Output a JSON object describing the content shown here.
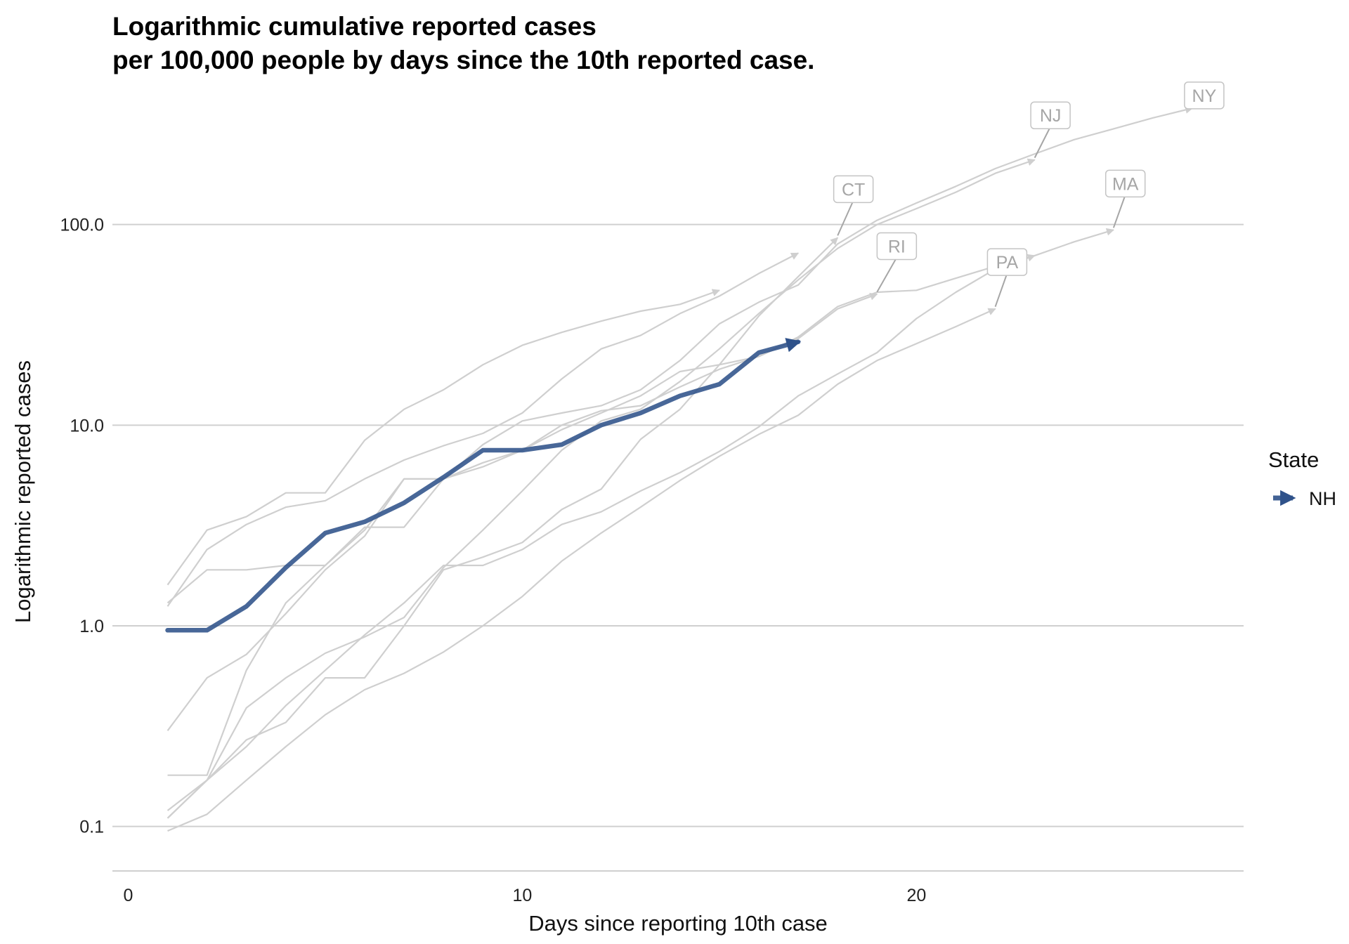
{
  "chart_data": {
    "type": "line",
    "title": "Logarithmic cumulative reported cases",
    "subtitle": "per 100,000 people by days since the 10th reported case.",
    "xlabel": "Days since reporting 10th case",
    "ylabel": "Logarithmic reported cases",
    "x_scale": "linear",
    "y_scale": "log10",
    "xlim": [
      -0.4,
      28.3
    ],
    "ylim": [
      0.06,
      500
    ],
    "x_ticks": [
      0,
      10,
      20
    ],
    "x_tick_labels": [
      "0",
      "10",
      "20"
    ],
    "y_ticks": [
      0.1,
      1,
      10,
      100
    ],
    "y_tick_labels": [
      "0.1",
      "1.0",
      "10.0",
      "100.0"
    ],
    "grid": "horizontal major",
    "legend": {
      "title": "State",
      "position": "right",
      "entries": [
        "NH"
      ]
    },
    "highlight_color": "#2f528a",
    "background_line_color": "#cfcfcf",
    "label_color": "#a6a6a6",
    "series": [
      {
        "name": "NH",
        "highlight": true,
        "x": [
          1,
          2,
          3,
          4,
          5,
          6,
          7,
          8,
          9,
          10,
          11,
          12,
          13,
          14,
          15,
          16,
          17
        ],
        "y": [
          0.95,
          0.95,
          1.25,
          1.95,
          2.9,
          3.3,
          4.1,
          5.5,
          7.5,
          7.5,
          8.0,
          10.0,
          11.5,
          14.0,
          16.0,
          23.0,
          26.0
        ]
      },
      {
        "name": "NY",
        "label_x": 27.3,
        "label_y": 440,
        "x": [
          1,
          2,
          3,
          4,
          5,
          6,
          7,
          8,
          9,
          10,
          11,
          12,
          13,
          14,
          15,
          16,
          17,
          18,
          19,
          20,
          21,
          22,
          23,
          24,
          25,
          26,
          27
        ],
        "y": [
          0.18,
          0.18,
          0.6,
          1.3,
          2.0,
          3.0,
          5.4,
          5.4,
          8.0,
          10.5,
          11.5,
          12.5,
          15.0,
          21.0,
          32.0,
          41.0,
          50.0,
          80.0,
          105.0,
          128.0,
          155.0,
          190.0,
          225.0,
          265.0,
          300.0,
          340.0,
          380.0
        ]
      },
      {
        "name": "NJ",
        "label_x": 23.4,
        "label_y": 350,
        "x": [
          1,
          2,
          3,
          4,
          5,
          6,
          7,
          8,
          9,
          10,
          11,
          12,
          13,
          14,
          15,
          16,
          17,
          18,
          19,
          20,
          21,
          22,
          23
        ],
        "y": [
          0.12,
          0.17,
          0.39,
          0.55,
          0.73,
          0.88,
          1.1,
          1.95,
          3.0,
          4.7,
          7.5,
          10.5,
          12.0,
          16.5,
          24.0,
          36.0,
          53.0,
          76.0,
          100.0,
          120.0,
          145.0,
          180.0,
          210.0
        ]
      },
      {
        "name": "MA",
        "label_x": 25.3,
        "label_y": 160,
        "x": [
          1,
          2,
          3,
          4,
          5,
          6,
          7,
          8,
          9,
          10,
          11,
          12,
          13,
          14,
          15,
          16,
          17,
          18,
          19,
          20,
          21,
          22,
          23,
          24,
          25
        ],
        "y": [
          0.3,
          0.55,
          0.72,
          1.15,
          1.9,
          2.8,
          5.4,
          5.4,
          6.2,
          7.5,
          10.0,
          11.8,
          12.5,
          15.5,
          19.0,
          22.0,
          27.5,
          39.0,
          46.0,
          47.0,
          54.0,
          62.0,
          70.0,
          82.0,
          94.0
        ]
      },
      {
        "name": "CT",
        "label_x": 18.4,
        "label_y": 150,
        "x": [
          1,
          2,
          3,
          4,
          5,
          6,
          7,
          8,
          9,
          10,
          11,
          12,
          13,
          14,
          15,
          16,
          17,
          18
        ],
        "y": [
          0.11,
          0.17,
          0.27,
          0.33,
          0.55,
          0.55,
          1.0,
          1.9,
          2.2,
          2.6,
          3.8,
          4.8,
          8.5,
          12.0,
          20.0,
          35.0,
          55.0,
          86.0
        ]
      },
      {
        "name": "RI",
        "label_x": 19.5,
        "label_y": 78,
        "x": [
          1,
          2,
          3,
          4,
          5,
          6,
          7,
          8,
          9,
          10,
          11,
          12,
          13,
          14,
          15,
          16,
          17,
          18,
          19
        ],
        "y": [
          1.3,
          1.9,
          1.9,
          2.0,
          2.0,
          3.1,
          3.1,
          5.4,
          6.5,
          7.5,
          9.5,
          11.5,
          14.0,
          18.5,
          20.0,
          22.0,
          27.0,
          38.0,
          45.0
        ]
      },
      {
        "name": "PA",
        "label_x": 22.3,
        "label_y": 65,
        "x": [
          1,
          2,
          3,
          4,
          5,
          6,
          7,
          8,
          9,
          10,
          11,
          12,
          13,
          14,
          15,
          16,
          17,
          18,
          19,
          20,
          21,
          22
        ],
        "y": [
          0.095,
          0.115,
          0.17,
          0.25,
          0.36,
          0.48,
          0.58,
          0.74,
          1.0,
          1.4,
          2.1,
          2.9,
          3.9,
          5.3,
          7.0,
          9.0,
          11.2,
          16.0,
          21.0,
          25.5,
          31.0,
          38.0
        ]
      },
      {
        "x": [
          1,
          2,
          3,
          4,
          5,
          6,
          7,
          8,
          9,
          10,
          11,
          12,
          13,
          14,
          15
        ],
        "y": [
          1.6,
          3.0,
          3.5,
          4.6,
          4.6,
          8.4,
          12.0,
          15.0,
          20.0,
          25.0,
          29.0,
          33.0,
          37.0,
          40.0,
          47.0
        ]
      },
      {
        "x": [
          1,
          2,
          3,
          4,
          5,
          6,
          7,
          8,
          9,
          10,
          11,
          12,
          13,
          14,
          15,
          16,
          17
        ],
        "y": [
          1.25,
          2.4,
          3.2,
          3.9,
          4.2,
          5.4,
          6.7,
          7.9,
          9.1,
          11.5,
          17.0,
          24.0,
          28.0,
          36.0,
          44.0,
          57.0,
          72.0
        ]
      },
      {
        "x": [
          1,
          2,
          3,
          4,
          5,
          6,
          7,
          8,
          9,
          10,
          11,
          12,
          13,
          14,
          15,
          16,
          17,
          18,
          19,
          20,
          21,
          22,
          23
        ],
        "y": [
          0.11,
          0.17,
          0.25,
          0.4,
          0.6,
          0.9,
          1.3,
          2.0,
          2.0,
          2.4,
          3.2,
          3.7,
          4.7,
          5.8,
          7.4,
          9.8,
          14.0,
          18.0,
          23.0,
          34.0,
          46.0,
          60.0,
          70.0
        ]
      }
    ]
  }
}
